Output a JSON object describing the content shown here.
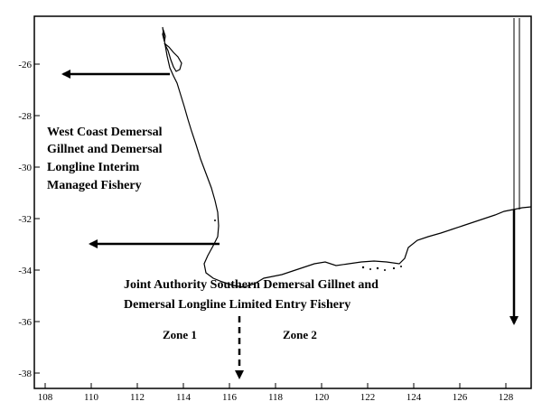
{
  "map": {
    "x_ticks": [
      "108",
      "110",
      "112",
      "114",
      "116",
      "118",
      "120",
      "122",
      "124",
      "126",
      "128"
    ],
    "y_ticks": [
      "-26",
      "-28",
      "-30",
      "-32",
      "-34",
      "-36",
      "-38"
    ],
    "west_coast_fishery": {
      "lines": [
        "West Coast Demersal",
        "Gillnet and Demersal",
        "Longline Interim",
        "Managed Fishery"
      ]
    },
    "southern_fishery": {
      "lines": [
        "Joint Authority Southern Demersal Gillnet and",
        "Demersal Longline Limited Entry Fishery"
      ]
    },
    "zones": {
      "zone1": "Zone 1",
      "zone2": "Zone 2"
    },
    "colors": {
      "ink": "#000000",
      "background": "#ffffff"
    }
  }
}
